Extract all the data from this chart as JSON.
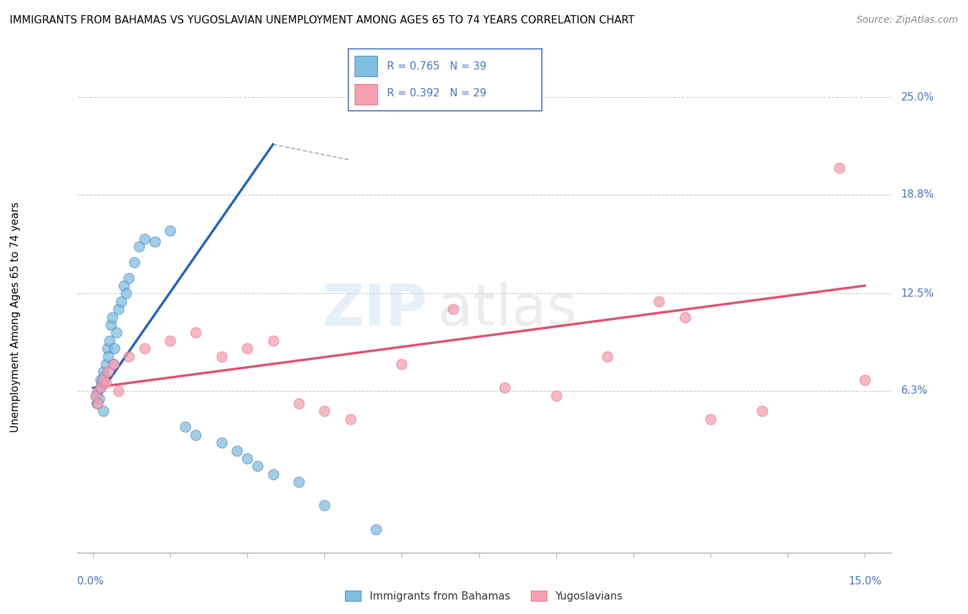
{
  "title": "IMMIGRANTS FROM BAHAMAS VS YUGOSLAVIAN UNEMPLOYMENT AMONG AGES 65 TO 74 YEARS CORRELATION CHART",
  "source": "Source: ZipAtlas.com",
  "ylabel": "Unemployment Among Ages 65 to 74 years",
  "ytick_labels": [
    "6.3%",
    "12.5%",
    "18.8%",
    "25.0%"
  ],
  "ytick_values": [
    6.3,
    12.5,
    18.8,
    25.0
  ],
  "xlim": [
    0.0,
    15.0
  ],
  "ylim": [
    -4.0,
    26.5
  ],
  "legend1_r": "0.765",
  "legend1_n": "39",
  "legend2_r": "0.392",
  "legend2_n": "29",
  "legend1_label": "Immigrants from Bahamas",
  "legend2_label": "Yugoslavians",
  "blue_color": "#7fbfdf",
  "pink_color": "#f4a0b0",
  "blue_line_color": "#2060c0",
  "pink_line_color": "#e05070",
  "blue_scatter_x": [
    0.05,
    0.08,
    0.1,
    0.12,
    0.15,
    0.15,
    0.18,
    0.2,
    0.2,
    0.22,
    0.25,
    0.28,
    0.3,
    0.32,
    0.35,
    0.38,
    0.4,
    0.42,
    0.45,
    0.5,
    0.55,
    0.6,
    0.65,
    0.7,
    0.8,
    0.9,
    1.0,
    1.2,
    1.5,
    1.8,
    2.0,
    2.5,
    2.8,
    3.0,
    3.2,
    3.5,
    4.0,
    4.5,
    5.5
  ],
  "blue_scatter_y": [
    6.0,
    5.5,
    6.3,
    5.8,
    6.5,
    7.0,
    6.8,
    7.5,
    5.0,
    7.2,
    8.0,
    9.0,
    8.5,
    9.5,
    10.5,
    11.0,
    8.0,
    9.0,
    10.0,
    11.5,
    12.0,
    13.0,
    12.5,
    13.5,
    14.5,
    15.5,
    16.0,
    15.8,
    16.5,
    4.0,
    3.5,
    3.0,
    2.5,
    2.0,
    1.5,
    1.0,
    0.5,
    -1.0,
    -2.5
  ],
  "pink_scatter_x": [
    0.05,
    0.1,
    0.15,
    0.2,
    0.25,
    0.3,
    0.4,
    0.5,
    0.7,
    1.0,
    1.5,
    2.0,
    2.5,
    3.0,
    3.5,
    4.0,
    4.5,
    5.0,
    6.0,
    7.0,
    8.0,
    9.0,
    10.0,
    11.0,
    11.5,
    12.0,
    13.0,
    14.5,
    15.0
  ],
  "pink_scatter_y": [
    6.0,
    5.5,
    6.5,
    7.0,
    6.8,
    7.5,
    8.0,
    6.3,
    8.5,
    9.0,
    9.5,
    10.0,
    8.5,
    9.0,
    9.5,
    5.5,
    5.0,
    4.5,
    8.0,
    11.5,
    6.5,
    6.0,
    8.5,
    12.0,
    11.0,
    4.5,
    5.0,
    20.5,
    7.0
  ],
  "blue_line_x0": 0.0,
  "blue_line_y0": 5.5,
  "blue_line_x1": 3.5,
  "blue_line_y1": 22.0,
  "blue_dashed_x0": 3.5,
  "blue_dashed_y0": 22.0,
  "blue_dashed_x1": 5.0,
  "blue_dashed_y1": 21.0,
  "pink_line_x0": 0.0,
  "pink_line_y0": 6.5,
  "pink_line_x1": 15.0,
  "pink_line_y1": 13.0
}
